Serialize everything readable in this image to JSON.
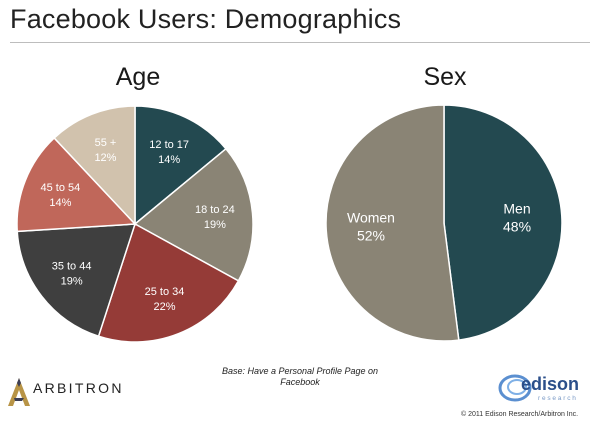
{
  "slide": {
    "title": "Facebook Users: Demographics",
    "base_note": "Base: Have a Personal Profile Page on Facebook",
    "copyright": "© 2011 Edison Research/Arbitron Inc."
  },
  "logos": {
    "arbitron": "ARBITRON",
    "edison": "edison",
    "edison_sub": "research"
  },
  "colors": {
    "dark_teal": "#234950",
    "taupe": "#8a8475",
    "brick_red": "#953b37",
    "charcoal": "#3f3f3f",
    "salmon": "#c0675a",
    "beige": "#d1c2ad"
  },
  "chart_data": [
    {
      "type": "pie",
      "title": "Age",
      "categories": [
        "12 to 17",
        "18 to 24",
        "25 to 34",
        "35 to 44",
        "45 to 54",
        "55 +"
      ],
      "values": [
        14,
        19,
        22,
        19,
        14,
        12
      ],
      "value_labels": [
        "14%",
        "19%",
        "22%",
        "19%",
        "14%",
        "12%"
      ],
      "colors": [
        "#234950",
        "#8a8475",
        "#953b37",
        "#3f3f3f",
        "#c0675a",
        "#d1c2ad"
      ]
    },
    {
      "type": "pie",
      "title": "Sex",
      "categories": [
        "Men",
        "Women"
      ],
      "values": [
        48,
        52
      ],
      "value_labels": [
        "48%",
        "52%"
      ],
      "colors": [
        "#234950",
        "#8a8475"
      ]
    }
  ]
}
